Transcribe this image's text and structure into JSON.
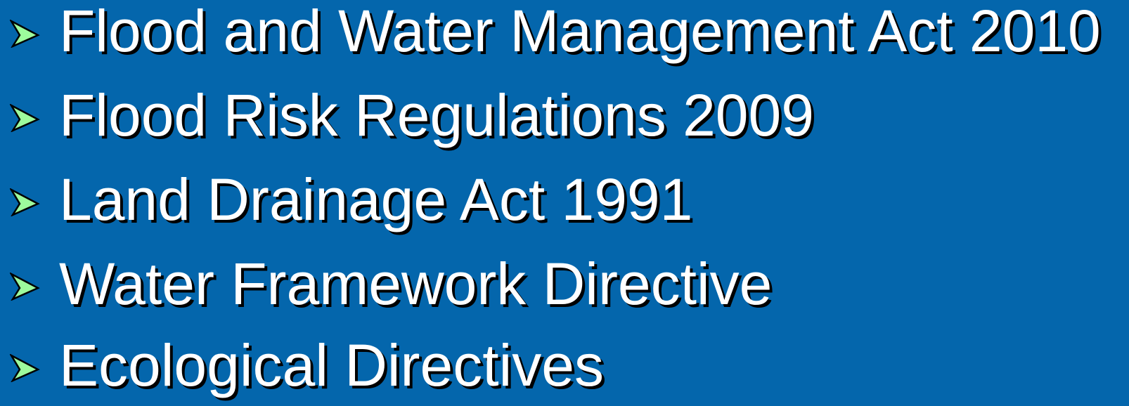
{
  "items": [
    "Flood and Water Management Act 2010",
    "Flood Risk Regulations 2009",
    "Land Drainage Act 1991",
    "Water Framework Directive",
    "Ecological Directives"
  ]
}
